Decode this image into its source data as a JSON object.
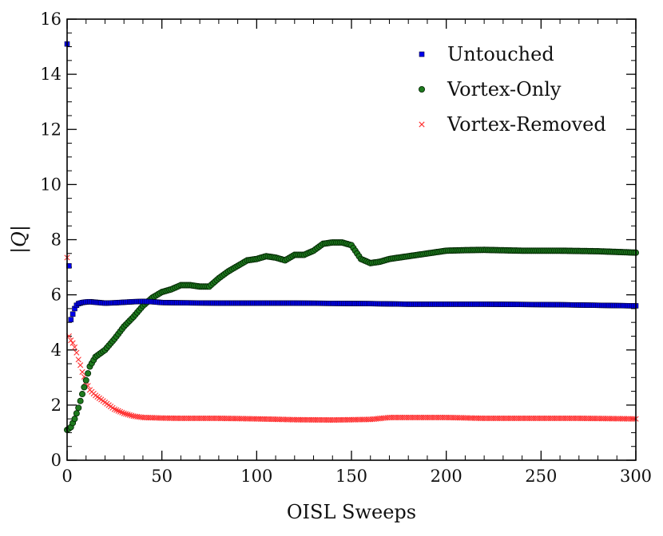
{
  "chart_data": {
    "type": "scatter",
    "title": "",
    "xlabel": "OISL Sweeps",
    "ylabel": "|Q|",
    "xlim": [
      0,
      300
    ],
    "ylim": [
      0,
      16
    ],
    "grid": false,
    "legend_position": "top-right",
    "x_ticks": [
      {
        "value": 0,
        "label": "0"
      },
      {
        "value": 50,
        "label": "50"
      },
      {
        "value": 100,
        "label": "100"
      },
      {
        "value": 150,
        "label": "150"
      },
      {
        "value": 200,
        "label": "200"
      },
      {
        "value": 250,
        "label": "250"
      },
      {
        "value": 300,
        "label": "300"
      }
    ],
    "y_ticks": [
      {
        "value": 0,
        "label": "0"
      },
      {
        "value": 2,
        "label": "2"
      },
      {
        "value": 4,
        "label": "4"
      },
      {
        "value": 6,
        "label": "6"
      },
      {
        "value": 8,
        "label": "8"
      },
      {
        "value": 10,
        "label": "10"
      },
      {
        "value": 12,
        "label": "12"
      },
      {
        "value": 14,
        "label": "14"
      },
      {
        "value": 16,
        "label": "16"
      }
    ],
    "series": [
      {
        "name": "Untouched",
        "marker": "square",
        "color": "#0000ee",
        "edge_color": "#000033",
        "points": [
          [
            0,
            15.1
          ],
          [
            1,
            7.05
          ],
          [
            2,
            5.1
          ],
          [
            3,
            5.3
          ],
          [
            4,
            5.5
          ],
          [
            5,
            5.62
          ],
          [
            6,
            5.68
          ],
          [
            8,
            5.72
          ],
          [
            10,
            5.74
          ],
          [
            12,
            5.75
          ],
          [
            15,
            5.73
          ],
          [
            20,
            5.7
          ],
          [
            25,
            5.71
          ],
          [
            30,
            5.73
          ],
          [
            35,
            5.75
          ],
          [
            40,
            5.76
          ],
          [
            45,
            5.75
          ],
          [
            50,
            5.72
          ],
          [
            60,
            5.71
          ],
          [
            80,
            5.7
          ],
          [
            100,
            5.7
          ],
          [
            120,
            5.7
          ],
          [
            140,
            5.69
          ],
          [
            160,
            5.68
          ],
          [
            180,
            5.66
          ],
          [
            200,
            5.66
          ],
          [
            220,
            5.66
          ],
          [
            240,
            5.65
          ],
          [
            260,
            5.64
          ],
          [
            280,
            5.62
          ],
          [
            300,
            5.6
          ]
        ]
      },
      {
        "name": "Vortex-Only",
        "marker": "circle",
        "color": "#1e7a1e",
        "edge_color": "#002200",
        "points": [
          [
            0,
            1.1
          ],
          [
            2,
            1.2
          ],
          [
            4,
            1.5
          ],
          [
            6,
            1.9
          ],
          [
            8,
            2.4
          ],
          [
            10,
            2.9
          ],
          [
            12,
            3.4
          ],
          [
            15,
            3.75
          ],
          [
            20,
            4.0
          ],
          [
            25,
            4.4
          ],
          [
            30,
            4.85
          ],
          [
            35,
            5.2
          ],
          [
            40,
            5.6
          ],
          [
            45,
            5.9
          ],
          [
            50,
            6.1
          ],
          [
            55,
            6.2
          ],
          [
            60,
            6.35
          ],
          [
            65,
            6.35
          ],
          [
            70,
            6.3
          ],
          [
            75,
            6.3
          ],
          [
            80,
            6.6
          ],
          [
            85,
            6.85
          ],
          [
            90,
            7.05
          ],
          [
            95,
            7.25
          ],
          [
            100,
            7.3
          ],
          [
            105,
            7.4
          ],
          [
            110,
            7.35
          ],
          [
            115,
            7.25
          ],
          [
            120,
            7.45
          ],
          [
            125,
            7.45
          ],
          [
            130,
            7.6
          ],
          [
            135,
            7.85
          ],
          [
            140,
            7.9
          ],
          [
            145,
            7.9
          ],
          [
            150,
            7.8
          ],
          [
            155,
            7.3
          ],
          [
            160,
            7.15
          ],
          [
            165,
            7.2
          ],
          [
            170,
            7.3
          ],
          [
            180,
            7.4
          ],
          [
            190,
            7.5
          ],
          [
            200,
            7.6
          ],
          [
            210,
            7.62
          ],
          [
            220,
            7.63
          ],
          [
            240,
            7.6
          ],
          [
            260,
            7.6
          ],
          [
            280,
            7.58
          ],
          [
            300,
            7.53
          ]
        ]
      },
      {
        "name": "Vortex-Removed",
        "marker": "x",
        "color": "#ff3030",
        "edge_color": "#ff3030",
        "points": [
          [
            0,
            7.35
          ],
          [
            1,
            4.5
          ],
          [
            2,
            4.35
          ],
          [
            3,
            4.25
          ],
          [
            4,
            4.1
          ],
          [
            5,
            3.9
          ],
          [
            6,
            3.65
          ],
          [
            7,
            3.45
          ],
          [
            8,
            3.2
          ],
          [
            10,
            2.85
          ],
          [
            12,
            2.55
          ],
          [
            15,
            2.35
          ],
          [
            20,
            2.1
          ],
          [
            25,
            1.85
          ],
          [
            30,
            1.7
          ],
          [
            35,
            1.6
          ],
          [
            40,
            1.55
          ],
          [
            50,
            1.53
          ],
          [
            60,
            1.52
          ],
          [
            80,
            1.52
          ],
          [
            100,
            1.5
          ],
          [
            120,
            1.47
          ],
          [
            140,
            1.46
          ],
          [
            160,
            1.48
          ],
          [
            170,
            1.55
          ],
          [
            180,
            1.55
          ],
          [
            200,
            1.55
          ],
          [
            220,
            1.52
          ],
          [
            250,
            1.52
          ],
          [
            270,
            1.52
          ],
          [
            300,
            1.5
          ]
        ]
      }
    ]
  }
}
